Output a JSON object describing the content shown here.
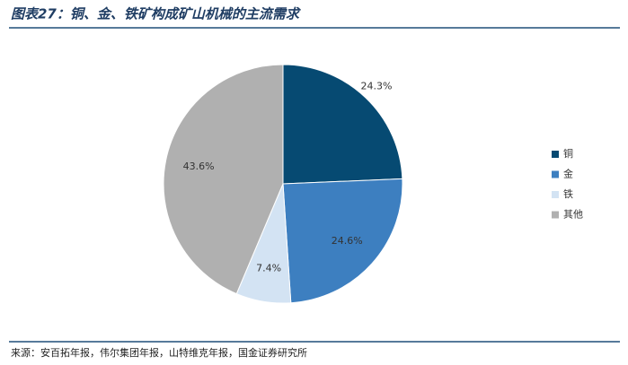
{
  "chart_data": {
    "type": "pie",
    "title": "图表27：铜、金、铁矿构成矿山机械的主流需求",
    "categories": [
      "铜",
      "金",
      "铁",
      "其他"
    ],
    "values": [
      24.3,
      24.6,
      7.4,
      43.6
    ],
    "value_labels": [
      "24.3%",
      "24.6%",
      "7.4%",
      "43.6%"
    ],
    "colors": [
      "#064a72",
      "#3d7fc0",
      "#d3e3f3",
      "#b0b0b0"
    ],
    "legend": "right",
    "source": "来源：安百拓年报，伟尔集团年报，山特维克年报，国金证券研究所"
  }
}
